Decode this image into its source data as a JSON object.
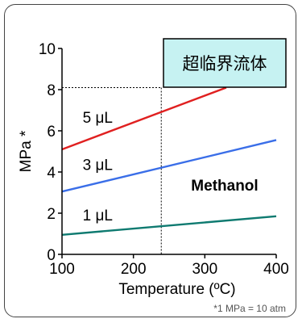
{
  "chart_data": {
    "type": "line",
    "xlabel": "Temperature (ºC)",
    "ylabel": "MPa *",
    "xlim": [
      100,
      400
    ],
    "ylim": [
      0,
      10
    ],
    "x_ticks": [
      "100",
      "200",
      "300",
      "400"
    ],
    "y_ticks": [
      "0",
      "2",
      "4",
      "6",
      "8",
      "10"
    ],
    "series": [
      {
        "name": "5 μL",
        "color": "#e02020",
        "x": [
          100,
          330
        ],
        "y": [
          5.1,
          8.1
        ]
      },
      {
        "name": "3 μL",
        "color": "#3a6ee8",
        "x": [
          100,
          400
        ],
        "y": [
          3.05,
          5.55
        ]
      },
      {
        "name": "1 μL",
        "color": "#0e7a70",
        "x": [
          100,
          400
        ],
        "y": [
          0.95,
          1.85
        ]
      }
    ],
    "annotations": {
      "box_label": "超临界流体",
      "box_color": "#c6f2f2",
      "compound": "Methanol",
      "critical_temperature": 239,
      "critical_pressure": 8.1,
      "footnote": "*1 MPa = 10 atm"
    }
  }
}
